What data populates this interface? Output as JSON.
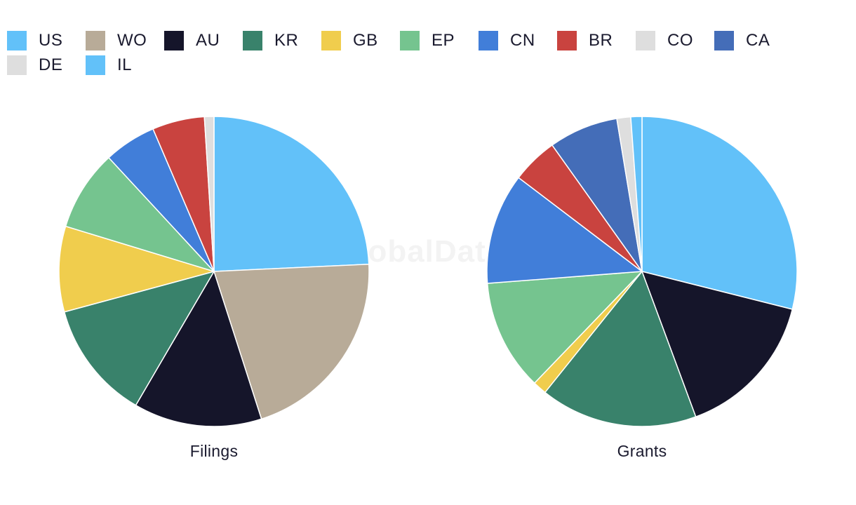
{
  "watermark": "GlobalData",
  "legend": [
    {
      "name": "US",
      "color": "#62c1f9"
    },
    {
      "name": "WO",
      "color": "#b8ab98"
    },
    {
      "name": "AU",
      "color": "#15152a"
    },
    {
      "name": "KR",
      "color": "#39826b"
    },
    {
      "name": "GB",
      "color": "#f0cd4d"
    },
    {
      "name": "EP",
      "color": "#75c48f"
    },
    {
      "name": "CN",
      "color": "#417ed9"
    },
    {
      "name": "BR",
      "color": "#c9433f"
    },
    {
      "name": "CO",
      "color": "#dedede"
    },
    {
      "name": "CA",
      "color": "#446db8"
    },
    {
      "name": "DE",
      "color": "#dedede"
    },
    {
      "name": "IL",
      "color": "#62c1f9"
    }
  ],
  "chart_data": [
    {
      "type": "pie",
      "title": "Filings",
      "slices": [
        {
          "label": "US",
          "value": 24.5
        },
        {
          "label": "WO",
          "value": 21.0
        },
        {
          "label": "AU",
          "value": 13.5
        },
        {
          "label": "KR",
          "value": 12.5
        },
        {
          "label": "GB",
          "value": 9.0
        },
        {
          "label": "EP",
          "value": 8.5
        },
        {
          "label": "CN",
          "value": 5.5
        },
        {
          "label": "BR",
          "value": 5.5
        },
        {
          "label": "CO",
          "value": 1.0
        }
      ]
    },
    {
      "type": "pie",
      "title": "Grants",
      "slices": [
        {
          "label": "US",
          "value": 30.0
        },
        {
          "label": "AU",
          "value": 16.0
        },
        {
          "label": "KR",
          "value": 17.0
        },
        {
          "label": "GB",
          "value": 1.5
        },
        {
          "label": "EP",
          "value": 12.0
        },
        {
          "label": "CN",
          "value": 12.0
        },
        {
          "label": "BR",
          "value": 5.0
        },
        {
          "label": "CA",
          "value": 7.5
        },
        {
          "label": "DE",
          "value": 1.5
        },
        {
          "label": "IL",
          "value": 1.2
        }
      ]
    }
  ]
}
